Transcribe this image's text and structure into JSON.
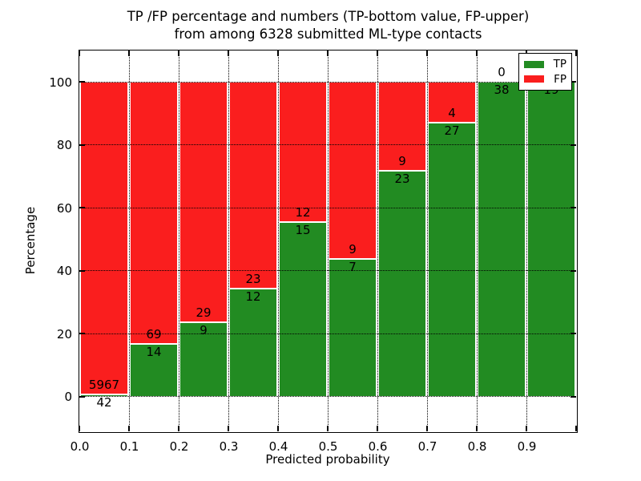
{
  "chart_data": {
    "type": "bar",
    "stacked": true,
    "normalized_to_percent": true,
    "title_line1": "TP /FP percentage and numbers (TP-bottom value, FP-upper)",
    "title_line2": "from among 6328 submitted ML-type contacts",
    "xlabel": "Predicted probability",
    "ylabel": "Percentage",
    "total_contacts": 6328,
    "xlim": [
      0,
      1.0
    ],
    "ylim": [
      -11,
      110
    ],
    "grid": "dotted",
    "legend_position": "upper right",
    "bar_width": 0.1,
    "colors": {
      "tp": "#228b22",
      "fp": "#fa1e1e",
      "bar_edge": "#ffffff",
      "grid": "#000000"
    },
    "x_tick_values": [
      0.0,
      0.1,
      0.2,
      0.3,
      0.4,
      0.5,
      0.6,
      0.7,
      0.8,
      0.9,
      1.0
    ],
    "x_tick_labels": [
      "0.0",
      "0.1",
      "0.2",
      "0.3",
      "0.4",
      "0.5",
      "0.6",
      "0.7",
      "0.8",
      "0.9",
      ""
    ],
    "y_tick_values": [
      0,
      20,
      40,
      60,
      80,
      100
    ],
    "y_tick_labels": [
      "0",
      "20",
      "40",
      "60",
      "80",
      "100"
    ],
    "bins": [
      {
        "x0": 0.0,
        "x1": 0.1,
        "tp": 42,
        "fp": 5967,
        "tp_percent": 0.7
      },
      {
        "x0": 0.1,
        "x1": 0.2,
        "tp": 14,
        "fp": 69,
        "tp_percent": 16.87
      },
      {
        "x0": 0.2,
        "x1": 0.3,
        "tp": 9,
        "fp": 29,
        "tp_percent": 23.68
      },
      {
        "x0": 0.3,
        "x1": 0.4,
        "tp": 12,
        "fp": 23,
        "tp_percent": 34.29
      },
      {
        "x0": 0.4,
        "x1": 0.5,
        "tp": 15,
        "fp": 12,
        "tp_percent": 55.56
      },
      {
        "x0": 0.5,
        "x1": 0.6,
        "tp": 7,
        "fp": 9,
        "tp_percent": 43.75
      },
      {
        "x0": 0.6,
        "x1": 0.7,
        "tp": 23,
        "fp": 9,
        "tp_percent": 71.88
      },
      {
        "x0": 0.7,
        "x1": 0.8,
        "tp": 27,
        "fp": 4,
        "tp_percent": 87.1
      },
      {
        "x0": 0.8,
        "x1": 0.9,
        "tp": 38,
        "fp": 0,
        "tp_percent": 100.0
      },
      {
        "x0": 0.9,
        "x1": 1.0,
        "tp": 19,
        "fp": 0,
        "tp_percent": 100.0
      }
    ],
    "series": [
      {
        "name": "TP",
        "color": "#228b22",
        "values": [
          42,
          14,
          9,
          12,
          15,
          7,
          23,
          27,
          38,
          19
        ]
      },
      {
        "name": "FP",
        "color": "#fa1e1e",
        "values": [
          5967,
          69,
          29,
          23,
          12,
          9,
          9,
          4,
          0,
          0
        ]
      }
    ],
    "legend": {
      "items": [
        {
          "label": "TP",
          "color": "#228b22"
        },
        {
          "label": "FP",
          "color": "#fa1e1e"
        }
      ]
    }
  }
}
